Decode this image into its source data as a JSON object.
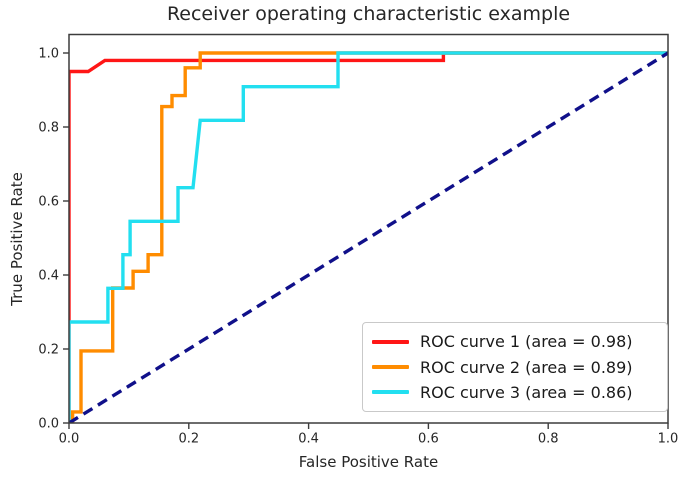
{
  "title": "Receiver operating characteristic example",
  "axes": {
    "x": {
      "label": "False Positive Rate",
      "tick_values": [
        0,
        0.2,
        0.4,
        0.6,
        0.8,
        1.0
      ],
      "tick_labels": [
        "0.0",
        "0.2",
        "0.4",
        "0.6",
        "0.8",
        "1.0"
      ]
    },
    "y": {
      "label": "True Positive Rate",
      "tick_values": [
        0,
        0.2,
        0.4,
        0.6,
        0.8,
        1.0
      ],
      "tick_labels": [
        "0.0",
        "0.2",
        "0.4",
        "0.6",
        "0.8",
        "1.0"
      ]
    }
  },
  "legend": {
    "position": "lower right",
    "items": [
      {
        "label": "ROC curve 1 (area = 0.98)",
        "color": "#ff1616"
      },
      {
        "label": "ROC curve 2 (area = 0.89)",
        "color": "#ff8c00"
      },
      {
        "label": "ROC curve 3 (area = 0.86)",
        "color": "#22dff0"
      }
    ]
  },
  "colors": {
    "curve1": "#ff1616",
    "curve2": "#ff8c00",
    "curve3": "#22dff0",
    "chance_line": "#10108a",
    "spine": "#3c3c3c",
    "text": "#262626",
    "background": "#ffffff"
  },
  "chart_data": {
    "type": "line",
    "title": "Receiver operating characteristic example",
    "xlabel": "False Positive Rate",
    "ylabel": "True Positive Rate",
    "xlim": [
      0,
      1.0
    ],
    "ylim": [
      0,
      1.05
    ],
    "grid": false,
    "legend_position": "lower right",
    "series": [
      {
        "name": "ROC curve 1",
        "area": 0.98,
        "color": "#ff1616",
        "style": "solid",
        "points": [
          [
            0,
            0
          ],
          [
            0,
            0.95
          ],
          [
            0.032,
            0.95
          ],
          [
            0.06,
            0.98
          ],
          [
            0.625,
            0.98
          ],
          [
            0.625,
            1.0
          ],
          [
            1,
            1
          ]
        ]
      },
      {
        "name": "ROC curve 2",
        "area": 0.89,
        "color": "#ff8c00",
        "style": "solid",
        "points": [
          [
            0,
            0
          ],
          [
            0.006,
            0
          ],
          [
            0.006,
            0.03
          ],
          [
            0.02,
            0.03
          ],
          [
            0.02,
            0.195
          ],
          [
            0.073,
            0.195
          ],
          [
            0.073,
            0.365
          ],
          [
            0.107,
            0.365
          ],
          [
            0.107,
            0.41
          ],
          [
            0.132,
            0.41
          ],
          [
            0.132,
            0.455
          ],
          [
            0.155,
            0.455
          ],
          [
            0.155,
            0.855
          ],
          [
            0.172,
            0.855
          ],
          [
            0.172,
            0.885
          ],
          [
            0.194,
            0.885
          ],
          [
            0.194,
            0.96
          ],
          [
            0.219,
            0.96
          ],
          [
            0.219,
            1.0
          ],
          [
            1,
            1
          ]
        ]
      },
      {
        "name": "ROC curve 3",
        "area": 0.86,
        "color": "#22dff0",
        "style": "solid",
        "points": [
          [
            0,
            0
          ],
          [
            0,
            0.273
          ],
          [
            0.065,
            0.273
          ],
          [
            0.065,
            0.364
          ],
          [
            0.09,
            0.364
          ],
          [
            0.09,
            0.455
          ],
          [
            0.102,
            0.455
          ],
          [
            0.102,
            0.545
          ],
          [
            0.182,
            0.545
          ],
          [
            0.182,
            0.636
          ],
          [
            0.207,
            0.636
          ],
          [
            0.219,
            0.818
          ],
          [
            0.291,
            0.818
          ],
          [
            0.291,
            0.909
          ],
          [
            0.449,
            0.909
          ],
          [
            0.449,
            1.0
          ],
          [
            1,
            1
          ]
        ]
      },
      {
        "name": "chance",
        "color": "#10108a",
        "style": "dashed",
        "points": [
          [
            0,
            0
          ],
          [
            1,
            1
          ]
        ]
      }
    ]
  }
}
